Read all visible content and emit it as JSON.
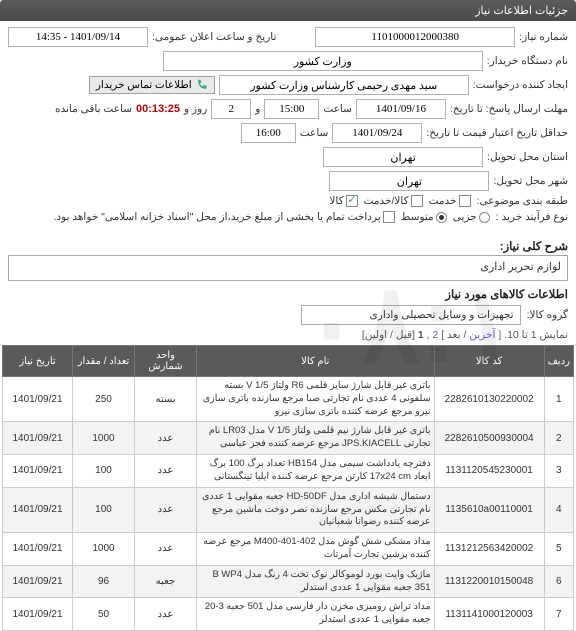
{
  "header": {
    "title": "جزئیات اطلاعات نیاز"
  },
  "form": {
    "need_no_label": "شماره نیاز:",
    "need_no": "1101000012000380",
    "public_dt_label": "تاریخ و ساعت اعلان عمومی:",
    "public_dt": "1401/09/14 - 14:35",
    "org_label": "نام دستگاه خریدار:",
    "org": "وزارت کشور",
    "creator_label": "ایجاد کننده درخواست:",
    "creator": "سید مهدی رحیمی کارشناس وزارت کشور",
    "contact_btn": "اطلاعات تماس خریدار",
    "deadline_label": "مهلت ارسال پاسخ: تا تاریخ:",
    "deadline_date": "1401/09/16",
    "time_label": "ساعت",
    "deadline_time": "15:00",
    "day_label": "و",
    "days": "2",
    "day_after": "روز و",
    "countdown": "00:13:25",
    "remain_after": "ساعت باقی مانده",
    "validity_label": "حداقل تاریخ اعتبار قیمت تا تاریخ:",
    "validity_date": "1401/09/24",
    "validity_time": "16:00",
    "province_label": "استان محل تحویل:",
    "province": "تهران",
    "city_label": "شهر محل تحویل:",
    "city": "تهران",
    "cat_label": "طبقه بندی موضوعی:",
    "cb_goods": "کالا",
    "cb_service": "کالا/خدمت",
    "cb_srv": "خدمت",
    "buy_type_label": "نوع فرآیند خرید :",
    "rb_low": "جزیی",
    "rb_mid": "متوسط",
    "note": "پرداخت تمام یا بخشی از مبلغ خرید،از محل \"اسناد خزانه اسلامی\" خواهد بود."
  },
  "sections": {
    "s1": "شرح کلی نیاز:",
    "desc": "لوازم تحریر اداری",
    "s2": "اطلاعات کالاهای مورد نیاز",
    "group_label": "گروه کالا:",
    "group_value": "تجهیزات و وسایل تحصیلی واداری"
  },
  "pager": {
    "prefix": "نمایش 1 تا 10.",
    "prev": "[ آخرین",
    "divider": "/ بعد ]",
    "p2": "2",
    "sep": ",",
    "p1": "1",
    "suffix": "[قبل / اولین]"
  },
  "table": {
    "headers": {
      "idx": "ردیف",
      "code": "کد کالا",
      "name": "نام کالا",
      "unit": "واحد شمارش",
      "qty": "تعداد / مقدار",
      "date": "تاریخ نیاز"
    },
    "rows": [
      {
        "idx": "1",
        "code": "2282610130220002",
        "name": "باتری غیر قابل شارژ سایز قلمی R6 ولتاژ 1/5 V بسته سلفونی 4 عددی نام تجارتی صبا مرجع سازنده باتری سازی نیرو مرجع عرضه کننده باتری سازی نیرو",
        "unit": "بسته",
        "qty": "250",
        "date": "1401/09/21"
      },
      {
        "idx": "2",
        "code": "2282610500930004",
        "name": "باتری غیر قابل شارژ نیم قلمی ولتاژ 1/5 V مدل LR03 نام تجارتی JPS.KIACELL مرجع عرضه کننده فجر عباسی",
        "unit": "عدد",
        "qty": "1000",
        "date": "1401/09/21"
      },
      {
        "idx": "3",
        "code": "1131120545230001",
        "name": "دفترچه یادداشت سیمی مدل HB154 تعداد برگ 100 برگ ابعاد 17x24 cm کارتن مرجع عرضه کننده ایلیا تینگستانی",
        "unit": "عدد",
        "qty": "100",
        "date": "1401/09/21"
      },
      {
        "idx": "4",
        "code": "1135610a00110001",
        "name": "دستمال شیشه اداری مدل HD-50DF جعبه مقوایی 1 عددی نام تجارتی مکس مرجع سازنده نصر دوخت ماشین مرجع عرضه کننده رضوانا شعبانیان",
        "unit": "عدد",
        "qty": "100",
        "date": "1401/09/21"
      },
      {
        "idx": "5",
        "code": "1131212563420002",
        "name": "مداد مشکی شش گوش مدل M400-401-402 مرجع عرضه کننده پرشین تجارت آمرتات",
        "unit": "عدد",
        "qty": "1000",
        "date": "1401/09/21"
      },
      {
        "idx": "6",
        "code": "1131220010150048",
        "name": "ماژیک وایت بورد لوموکالر نوک تخت 4 رنگ مدل B WP4 351 جعبه مقوایی 1 عددی استدلر",
        "unit": "جعبه",
        "qty": "96",
        "date": "1401/09/21"
      },
      {
        "idx": "7",
        "code": "1131141000120003",
        "name": "مداد تراش رومیزی مخزن دار فارسی مدل 501 جعبه 3-20 جعبه مقوایی 1 عددی استدلر",
        "unit": "عدد",
        "qty": "50",
        "date": "1401/09/21"
      }
    ]
  }
}
